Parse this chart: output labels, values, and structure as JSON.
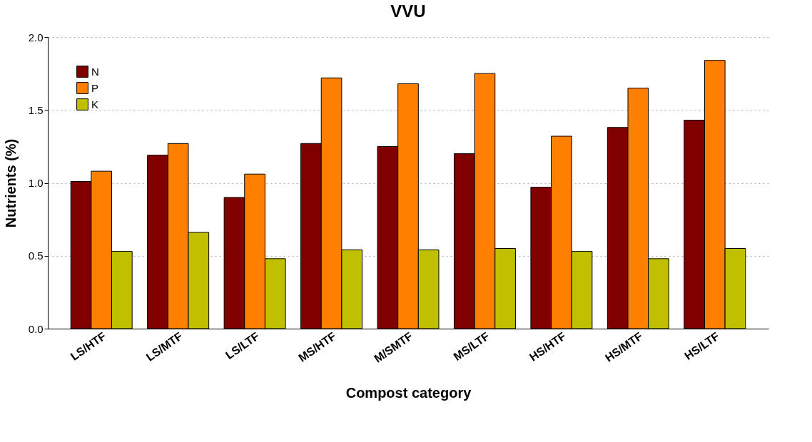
{
  "chart_data": {
    "type": "bar",
    "title": "VVU",
    "xlabel": "Compost category",
    "ylabel": "Nutrients (%)",
    "categories": [
      "LS/HTF",
      "LS/MTF",
      "LS/LTF",
      "MS/HTF",
      "M/SMTF",
      "MS/LTF",
      "HS/HTF",
      "HS/MTF",
      "HS/LTF"
    ],
    "series": [
      {
        "name": "N",
        "color": "#800000",
        "values": [
          1.01,
          1.19,
          0.9,
          1.27,
          1.25,
          1.2,
          0.97,
          1.38,
          1.43
        ]
      },
      {
        "name": "P",
        "color": "#ff8000",
        "values": [
          1.08,
          1.27,
          1.06,
          1.72,
          1.68,
          1.75,
          1.32,
          1.65,
          1.84
        ]
      },
      {
        "name": "K",
        "color": "#c0c000",
        "values": [
          0.53,
          0.66,
          0.48,
          0.54,
          0.54,
          0.55,
          0.53,
          0.48,
          0.55
        ]
      }
    ],
    "ylim": [
      0,
      2
    ],
    "yticks": [
      {
        "value": 0,
        "label": "0.0"
      },
      {
        "value": 0.5,
        "label": "0.5"
      },
      {
        "value": 1,
        "label": "1.0"
      },
      {
        "value": 1.5,
        "label": "1.5"
      },
      {
        "value": 2,
        "label": "2.0"
      }
    ],
    "grid": "y",
    "legend": "top left"
  }
}
